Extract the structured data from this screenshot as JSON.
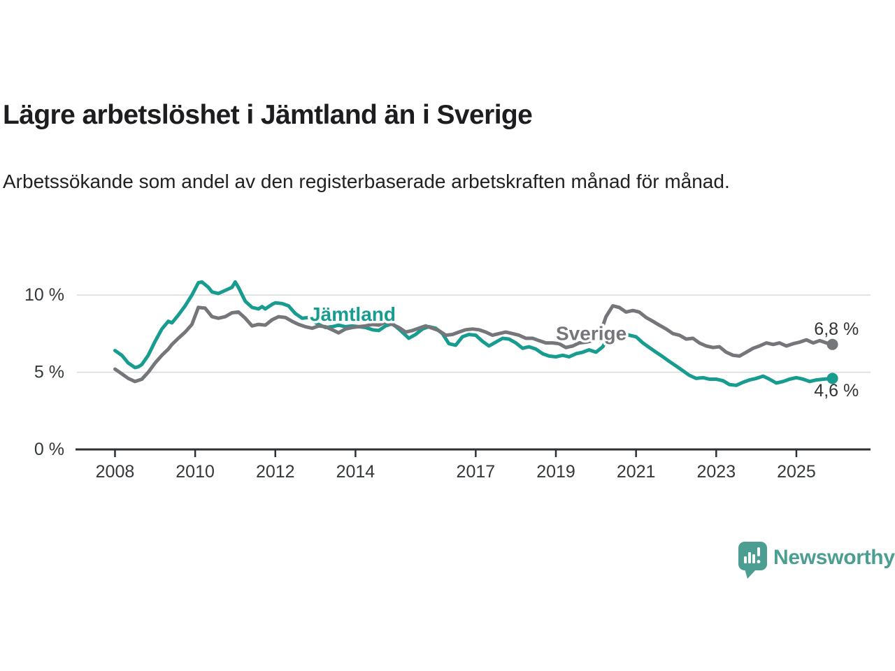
{
  "header": {
    "title": "Lägre arbetslöshet i Jämtland än i Sverige",
    "subtitle": "Arbetssökande som andel av den registerbaserade arbetskraften månad för månad."
  },
  "chart_data": {
    "type": "line",
    "title": "Lägre arbetslöshet i Jämtland än i Sverige",
    "subtitle": "Arbetssökande som andel av den registerbaserade arbetskraften månad för månad.",
    "unit": "%",
    "grid": "horizontal",
    "xlim": [
      2007.05,
      2026.85
    ],
    "ylim": [
      0,
      11.5
    ],
    "x_ticks": [
      {
        "year": 2008,
        "label": "2008"
      },
      {
        "year": 2010,
        "label": "2010"
      },
      {
        "year": 2012,
        "label": "2012"
      },
      {
        "year": 2014,
        "label": "2014"
      },
      {
        "year": 2017,
        "label": "2017"
      },
      {
        "year": 2019,
        "label": "2019"
      },
      {
        "year": 2021,
        "label": "2021"
      },
      {
        "year": 2023,
        "label": "2023"
      },
      {
        "year": 2025,
        "label": "2025"
      }
    ],
    "y_ticks": [
      {
        "value": 0,
        "label": "0 %"
      },
      {
        "value": 5,
        "label": "5 %"
      },
      {
        "value": 10,
        "label": "10 %"
      }
    ],
    "colors": {
      "axis": "#2e3134",
      "gridline": "#dbdbdb",
      "tick_text": "#35383b"
    },
    "series": [
      {
        "name": "Jämtland",
        "color": "#189c90",
        "label_anchor": {
          "x": 2012.86,
          "y": 8.73
        },
        "end_label": "4,6 %",
        "end_label_pos": {
          "x": 2026.0,
          "y": 3.8
        },
        "end_value": "4,6 %",
        "points": [
          [
            2008.0,
            6.4
          ],
          [
            2008.17,
            6.1
          ],
          [
            2008.33,
            5.6
          ],
          [
            2008.5,
            5.3
          ],
          [
            2008.58,
            5.35
          ],
          [
            2008.67,
            5.5
          ],
          [
            2008.83,
            6.1
          ],
          [
            2009.0,
            7.0
          ],
          [
            2009.17,
            7.8
          ],
          [
            2009.33,
            8.3
          ],
          [
            2009.42,
            8.2
          ],
          [
            2009.58,
            8.7
          ],
          [
            2009.75,
            9.3
          ],
          [
            2009.92,
            10.0
          ],
          [
            2010.08,
            10.8
          ],
          [
            2010.17,
            10.85
          ],
          [
            2010.33,
            10.5
          ],
          [
            2010.42,
            10.2
          ],
          [
            2010.58,
            10.1
          ],
          [
            2010.75,
            10.3
          ],
          [
            2010.92,
            10.5
          ],
          [
            2011.0,
            10.85
          ],
          [
            2011.08,
            10.5
          ],
          [
            2011.25,
            9.6
          ],
          [
            2011.42,
            9.2
          ],
          [
            2011.58,
            9.1
          ],
          [
            2011.67,
            9.25
          ],
          [
            2011.75,
            9.1
          ],
          [
            2011.92,
            9.4
          ],
          [
            2012.0,
            9.5
          ],
          [
            2012.17,
            9.45
          ],
          [
            2012.33,
            9.3
          ],
          [
            2012.5,
            8.8
          ],
          [
            2012.67,
            8.5
          ],
          [
            2012.83,
            8.55
          ],
          [
            2012.92,
            8.35
          ],
          [
            2013.08,
            8.1
          ],
          [
            2013.25,
            7.9
          ],
          [
            2013.42,
            7.95
          ],
          [
            2013.58,
            8.05
          ],
          [
            2013.75,
            7.95
          ],
          [
            2013.92,
            8.0
          ],
          [
            2014.08,
            7.95
          ],
          [
            2014.25,
            7.9
          ],
          [
            2014.42,
            7.75
          ],
          [
            2014.58,
            7.7
          ],
          [
            2014.75,
            8.0
          ],
          [
            2014.92,
            8.15
          ],
          [
            2015.08,
            7.8
          ],
          [
            2015.25,
            7.4
          ],
          [
            2015.33,
            7.2
          ],
          [
            2015.5,
            7.45
          ],
          [
            2015.67,
            7.8
          ],
          [
            2015.83,
            7.95
          ],
          [
            2016.0,
            7.85
          ],
          [
            2016.17,
            7.5
          ],
          [
            2016.33,
            6.85
          ],
          [
            2016.5,
            6.75
          ],
          [
            2016.67,
            7.3
          ],
          [
            2016.83,
            7.45
          ],
          [
            2017.0,
            7.4
          ],
          [
            2017.17,
            7.0
          ],
          [
            2017.33,
            6.7
          ],
          [
            2017.5,
            6.95
          ],
          [
            2017.67,
            7.2
          ],
          [
            2017.83,
            7.15
          ],
          [
            2018.0,
            6.9
          ],
          [
            2018.17,
            6.55
          ],
          [
            2018.33,
            6.65
          ],
          [
            2018.5,
            6.5
          ],
          [
            2018.67,
            6.2
          ],
          [
            2018.83,
            6.05
          ],
          [
            2019.0,
            6.0
          ],
          [
            2019.17,
            6.1
          ],
          [
            2019.33,
            6.0
          ],
          [
            2019.5,
            6.2
          ],
          [
            2019.67,
            6.3
          ],
          [
            2019.83,
            6.45
          ],
          [
            2020.0,
            6.3
          ],
          [
            2020.17,
            6.65
          ],
          [
            2020.33,
            7.4
          ],
          [
            2020.5,
            7.7
          ],
          [
            2020.67,
            7.55
          ],
          [
            2020.83,
            7.4
          ],
          [
            2021.0,
            7.3
          ],
          [
            2021.17,
            6.9
          ],
          [
            2021.33,
            6.6
          ],
          [
            2021.5,
            6.3
          ],
          [
            2021.67,
            6.0
          ],
          [
            2021.83,
            5.7
          ],
          [
            2022.0,
            5.4
          ],
          [
            2022.17,
            5.1
          ],
          [
            2022.33,
            4.8
          ],
          [
            2022.5,
            4.6
          ],
          [
            2022.67,
            4.65
          ],
          [
            2022.83,
            4.55
          ],
          [
            2023.0,
            4.55
          ],
          [
            2023.17,
            4.45
          ],
          [
            2023.33,
            4.2
          ],
          [
            2023.5,
            4.15
          ],
          [
            2023.67,
            4.35
          ],
          [
            2023.83,
            4.5
          ],
          [
            2024.0,
            4.6
          ],
          [
            2024.17,
            4.75
          ],
          [
            2024.33,
            4.55
          ],
          [
            2024.5,
            4.3
          ],
          [
            2024.67,
            4.4
          ],
          [
            2024.83,
            4.55
          ],
          [
            2025.0,
            4.65
          ],
          [
            2025.17,
            4.55
          ],
          [
            2025.33,
            4.4
          ],
          [
            2025.5,
            4.5
          ],
          [
            2025.67,
            4.55
          ],
          [
            2025.9,
            4.6
          ]
        ]
      },
      {
        "name": "Sverige",
        "color": "#75767a",
        "label_anchor": {
          "x": 2019.0,
          "y": 7.5
        },
        "end_label": "6,8 %",
        "end_label_pos": {
          "x": 2026.0,
          "y": 7.78
        },
        "end_value": "6,8 %",
        "points": [
          [
            2008.0,
            5.2
          ],
          [
            2008.17,
            4.9
          ],
          [
            2008.33,
            4.6
          ],
          [
            2008.5,
            4.4
          ],
          [
            2008.67,
            4.55
          ],
          [
            2008.83,
            5.0
          ],
          [
            2009.0,
            5.6
          ],
          [
            2009.17,
            6.1
          ],
          [
            2009.33,
            6.5
          ],
          [
            2009.42,
            6.8
          ],
          [
            2009.58,
            7.2
          ],
          [
            2009.75,
            7.6
          ],
          [
            2009.92,
            8.1
          ],
          [
            2010.08,
            9.2
          ],
          [
            2010.25,
            9.15
          ],
          [
            2010.42,
            8.6
          ],
          [
            2010.58,
            8.5
          ],
          [
            2010.75,
            8.6
          ],
          [
            2010.92,
            8.85
          ],
          [
            2011.08,
            8.9
          ],
          [
            2011.25,
            8.5
          ],
          [
            2011.42,
            8.0
          ],
          [
            2011.58,
            8.1
          ],
          [
            2011.75,
            8.05
          ],
          [
            2011.92,
            8.4
          ],
          [
            2012.08,
            8.6
          ],
          [
            2012.25,
            8.55
          ],
          [
            2012.42,
            8.3
          ],
          [
            2012.58,
            8.1
          ],
          [
            2012.75,
            7.95
          ],
          [
            2012.92,
            7.85
          ],
          [
            2013.08,
            8.0
          ],
          [
            2013.25,
            7.95
          ],
          [
            2013.42,
            7.75
          ],
          [
            2013.58,
            7.55
          ],
          [
            2013.75,
            7.8
          ],
          [
            2013.92,
            7.9
          ],
          [
            2014.08,
            7.95
          ],
          [
            2014.25,
            8.0
          ],
          [
            2014.42,
            8.1
          ],
          [
            2014.58,
            8.05
          ],
          [
            2014.75,
            8.25
          ],
          [
            2014.92,
            8.1
          ],
          [
            2015.08,
            7.9
          ],
          [
            2015.25,
            7.6
          ],
          [
            2015.42,
            7.7
          ],
          [
            2015.58,
            7.85
          ],
          [
            2015.75,
            8.0
          ],
          [
            2015.92,
            7.85
          ],
          [
            2016.08,
            7.7
          ],
          [
            2016.25,
            7.4
          ],
          [
            2016.42,
            7.45
          ],
          [
            2016.58,
            7.6
          ],
          [
            2016.75,
            7.75
          ],
          [
            2016.92,
            7.8
          ],
          [
            2017.08,
            7.75
          ],
          [
            2017.25,
            7.6
          ],
          [
            2017.42,
            7.4
          ],
          [
            2017.58,
            7.5
          ],
          [
            2017.75,
            7.6
          ],
          [
            2017.92,
            7.5
          ],
          [
            2018.08,
            7.4
          ],
          [
            2018.25,
            7.2
          ],
          [
            2018.42,
            7.2
          ],
          [
            2018.58,
            7.05
          ],
          [
            2018.75,
            6.9
          ],
          [
            2018.92,
            6.9
          ],
          [
            2019.08,
            6.85
          ],
          [
            2019.25,
            6.6
          ],
          [
            2019.42,
            6.7
          ],
          [
            2019.58,
            6.9
          ],
          [
            2019.75,
            6.95
          ],
          [
            2019.92,
            7.05
          ],
          [
            2020.08,
            7.3
          ],
          [
            2020.25,
            8.6
          ],
          [
            2020.42,
            9.3
          ],
          [
            2020.58,
            9.2
          ],
          [
            2020.75,
            8.9
          ],
          [
            2020.92,
            9.0
          ],
          [
            2021.08,
            8.9
          ],
          [
            2021.25,
            8.55
          ],
          [
            2021.42,
            8.3
          ],
          [
            2021.58,
            8.05
          ],
          [
            2021.75,
            7.8
          ],
          [
            2021.92,
            7.5
          ],
          [
            2022.08,
            7.4
          ],
          [
            2022.25,
            7.15
          ],
          [
            2022.42,
            7.2
          ],
          [
            2022.58,
            6.9
          ],
          [
            2022.75,
            6.7
          ],
          [
            2022.92,
            6.6
          ],
          [
            2023.08,
            6.65
          ],
          [
            2023.25,
            6.3
          ],
          [
            2023.42,
            6.1
          ],
          [
            2023.58,
            6.05
          ],
          [
            2023.75,
            6.3
          ],
          [
            2023.92,
            6.55
          ],
          [
            2024.08,
            6.7
          ],
          [
            2024.25,
            6.9
          ],
          [
            2024.42,
            6.8
          ],
          [
            2024.58,
            6.9
          ],
          [
            2024.75,
            6.7
          ],
          [
            2024.92,
            6.85
          ],
          [
            2025.08,
            6.95
          ],
          [
            2025.25,
            7.1
          ],
          [
            2025.42,
            6.9
          ],
          [
            2025.58,
            7.05
          ],
          [
            2025.75,
            6.9
          ],
          [
            2025.9,
            6.8
          ]
        ]
      }
    ]
  },
  "footer": {
    "brand": "Newsworthy",
    "brand_color": "#4c9d92"
  }
}
